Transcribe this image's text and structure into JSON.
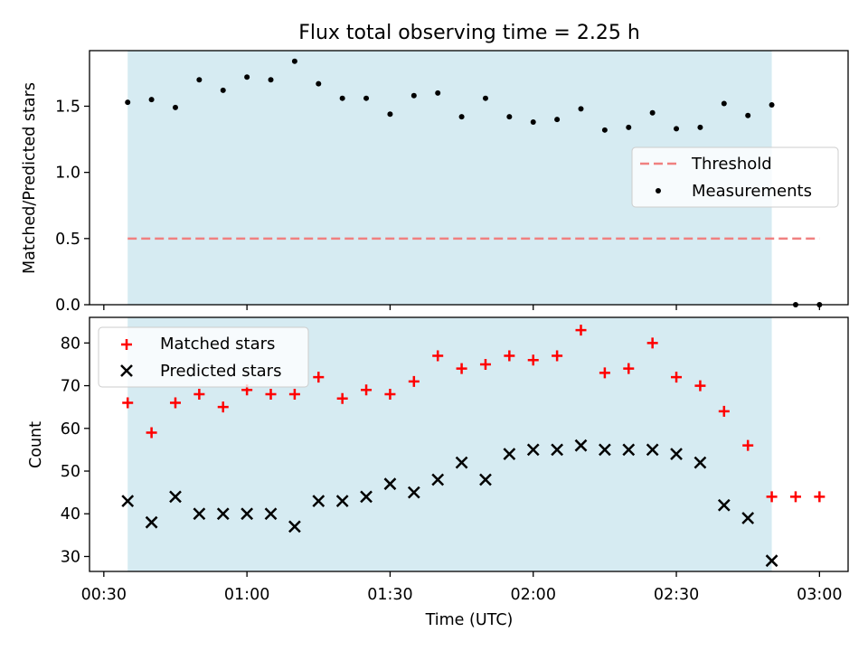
{
  "title": "Flux total observing time = 2.25 h",
  "chart_data": [
    {
      "type": "scatter",
      "ylabel": "Matched/Predicted stars",
      "ylim": [
        0,
        1.92
      ],
      "yticks": [
        "0.0",
        "0.5",
        "1.0",
        "1.5"
      ],
      "ytick_values": [
        0,
        0.5,
        1.0,
        1.5
      ],
      "observing_window": [
        "00:35",
        "02:50"
      ],
      "observing_window_color": "#add8e6",
      "legend_position": "center-right",
      "threshold": {
        "name": "Threshold",
        "value": 0.5,
        "x_range": [
          "00:35",
          "03:00"
        ],
        "color": "#f08080"
      },
      "series": [
        {
          "name": "Measurements",
          "marker": "dot",
          "color": "#000000",
          "x": [
            "00:35",
            "00:40",
            "00:45",
            "00:50",
            "00:55",
            "01:00",
            "01:05",
            "01:10",
            "01:15",
            "01:20",
            "01:25",
            "01:30",
            "01:35",
            "01:40",
            "01:45",
            "01:50",
            "01:55",
            "02:00",
            "02:05",
            "02:10",
            "02:15",
            "02:20",
            "02:25",
            "02:30",
            "02:35",
            "02:40",
            "02:45",
            "02:50",
            "02:55",
            "03:00"
          ],
          "y": [
            1.53,
            1.55,
            1.49,
            1.7,
            1.62,
            1.72,
            1.7,
            1.84,
            1.67,
            1.56,
            1.56,
            1.44,
            1.58,
            1.6,
            1.42,
            1.56,
            1.42,
            1.38,
            1.4,
            1.48,
            1.32,
            1.34,
            1.45,
            1.33,
            1.34,
            1.52,
            1.43,
            1.51,
            0.0,
            0.0
          ]
        }
      ]
    },
    {
      "type": "scatter",
      "xlabel": "Time (UTC)",
      "ylabel": "Count",
      "ylim": [
        26.5,
        86
      ],
      "yticks": [
        "30",
        "40",
        "50",
        "60",
        "70",
        "80"
      ],
      "ytick_values": [
        30,
        40,
        50,
        60,
        70,
        80
      ],
      "xlim": [
        "00:27",
        "03:06"
      ],
      "xticks": [
        "00:30",
        "01:00",
        "01:30",
        "02:00",
        "02:30",
        "03:00"
      ],
      "observing_window": [
        "00:35",
        "02:50"
      ],
      "observing_window_color": "#add8e6",
      "legend_position": "top-left",
      "series": [
        {
          "name": "Matched stars",
          "marker": "plus",
          "color": "#ff0000",
          "x": [
            "00:35",
            "00:40",
            "00:45",
            "00:50",
            "00:55",
            "01:00",
            "01:05",
            "01:10",
            "01:15",
            "01:20",
            "01:25",
            "01:30",
            "01:35",
            "01:40",
            "01:45",
            "01:50",
            "01:55",
            "02:00",
            "02:05",
            "02:10",
            "02:15",
            "02:20",
            "02:25",
            "02:30",
            "02:35",
            "02:40",
            "02:45",
            "02:50",
            "02:55",
            "03:00"
          ],
          "y": [
            66,
            59,
            66,
            68,
            65,
            69,
            68,
            68,
            72,
            67,
            69,
            68,
            71,
            77,
            74,
            75,
            77,
            76,
            77,
            83,
            73,
            74,
            80,
            72,
            70,
            64,
            56,
            44,
            44,
            44
          ]
        },
        {
          "name": "Predicted stars",
          "marker": "x",
          "color": "#000000",
          "x": [
            "00:35",
            "00:40",
            "00:45",
            "00:50",
            "00:55",
            "01:00",
            "01:05",
            "01:10",
            "01:15",
            "01:20",
            "01:25",
            "01:30",
            "01:35",
            "01:40",
            "01:45",
            "01:50",
            "01:55",
            "02:00",
            "02:05",
            "02:10",
            "02:15",
            "02:20",
            "02:25",
            "02:30",
            "02:35",
            "02:40",
            "02:45",
            "02:50"
          ],
          "y": [
            43,
            38,
            44,
            40,
            40,
            40,
            40,
            37,
            43,
            43,
            44,
            47,
            45,
            48,
            52,
            48,
            54,
            55,
            55,
            56,
            55,
            55,
            55,
            54,
            52,
            42,
            39,
            29
          ]
        }
      ]
    }
  ]
}
